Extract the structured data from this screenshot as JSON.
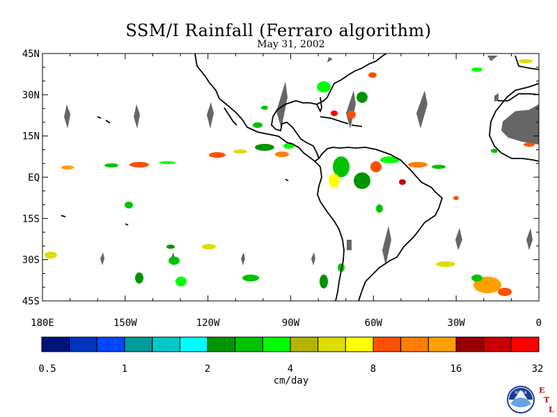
{
  "title": "SSM/I Rainfall (Ferraro algorithm)",
  "date": "May 31, 2002",
  "lat_labels": [
    "45N",
    "30N",
    "15N",
    "EQ",
    "15S",
    "30S",
    "45S"
  ],
  "lat_values": [
    45,
    30,
    15,
    0,
    -15,
    -30,
    -45
  ],
  "lon_labels": [
    "180E",
    "150W",
    "120W",
    "90W",
    "60W",
    "30W",
    "0"
  ],
  "lon_values": [
    -180,
    -150,
    -120,
    -90,
    -60,
    -30,
    0
  ],
  "extent": {
    "lon": [
      -180,
      0
    ],
    "lat": [
      -45,
      45
    ]
  },
  "colorbar": {
    "unit": "cm/day",
    "tick_labels": [
      "0.5",
      "1",
      "2",
      "4",
      "8",
      "16",
      "32"
    ],
    "colors": [
      "#00137a",
      "#0033bb",
      "#0047ff",
      "#009a9a",
      "#00c8c8",
      "#00ffff",
      "#009400",
      "#00c200",
      "#00ff00",
      "#b4b400",
      "#dddd00",
      "#ffff00",
      "#ff5000",
      "#ff7d00",
      "#ffa000",
      "#960000",
      "#c80000",
      "#ff0000"
    ]
  },
  "logo": {
    "text": "NOAA",
    "letters": [
      "E",
      "T",
      "L"
    ]
  },
  "colors": {
    "land": "#000000",
    "no_data": "#666666",
    "background": "#ffffff"
  }
}
